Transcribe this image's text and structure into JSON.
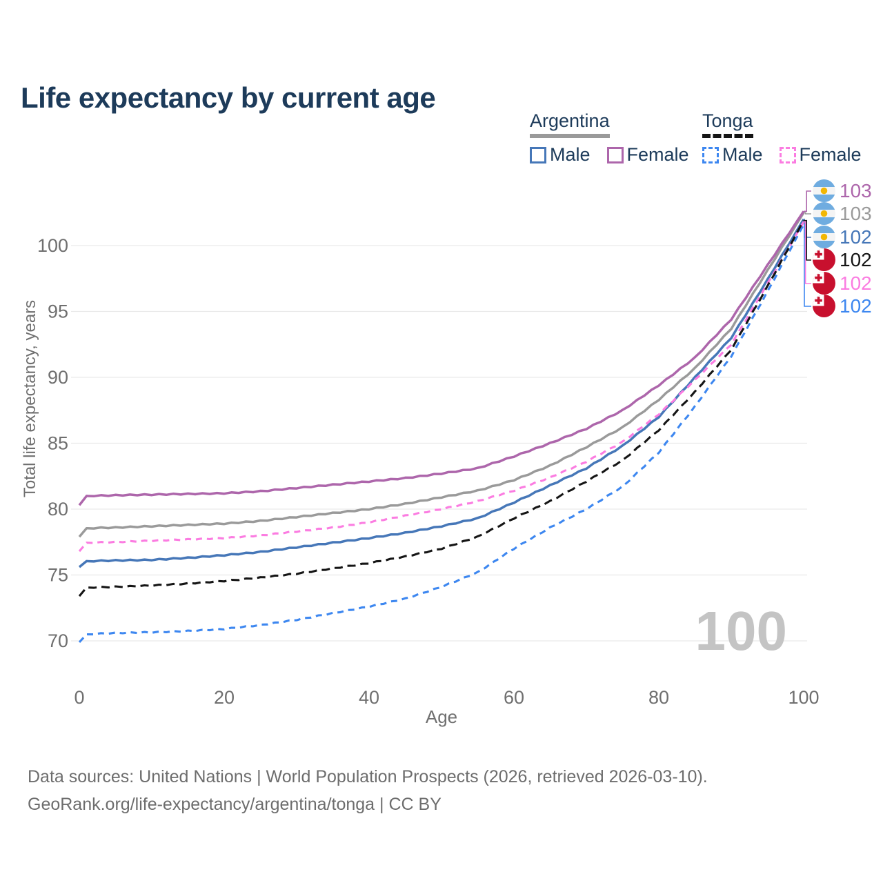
{
  "title": "Life expectancy by current age",
  "legend": {
    "argentina": {
      "label": "Argentina",
      "male": "Male",
      "female": "Female"
    },
    "tonga": {
      "label": "Tonga",
      "male": "Male",
      "female": "Female"
    }
  },
  "y_axis": {
    "title": "Total life expectancy, years"
  },
  "x_axis": {
    "title": "Age"
  },
  "age_counter_watermark": "100",
  "footer": {
    "line1": "Data sources: United Nations | World Population Prospects (2026, retrieved 2026-03-10).",
    "line2": "GeoRank.org/life-expectancy/argentina/tonga | CC BY"
  },
  "colors": {
    "title_text": "#1d3b5a",
    "axis_text": "#6f6f6f",
    "gridline": "#e9e9e9",
    "watermark": "#c4c4c4",
    "argentina_male": "#4677b8",
    "argentina_female": "#ad66ab",
    "argentina_total": "#9a9a9a",
    "tonga_male": "#3d87f0",
    "tonga_female": "#fb7ce1",
    "tonga_total": "#151515",
    "flag_argentina_blue": "#6FACE0",
    "flag_argentina_sun": "#F2B705",
    "flag_tonga_red": "#C8102E"
  },
  "end_labels": [
    {
      "flag": "argentina",
      "value": "103",
      "color": "#ad66ab"
    },
    {
      "flag": "argentina",
      "value": "103",
      "color": "#9a9a9a"
    },
    {
      "flag": "argentina",
      "value": "102",
      "color": "#4677b8"
    },
    {
      "flag": "tonga",
      "value": "102",
      "color": "#151515"
    },
    {
      "flag": "tonga",
      "value": "102",
      "color": "#fb7ce1"
    },
    {
      "flag": "tonga",
      "value": "102",
      "color": "#3d87f0"
    }
  ],
  "chart_data": {
    "type": "line",
    "title": "Life expectancy by current age",
    "xlabel": "Age",
    "ylabel": "Total life expectancy, years",
    "xlim": [
      0,
      100
    ],
    "ylim": [
      70,
      100
    ],
    "grid": true,
    "legend_position": "top-right",
    "x_ticks": [
      0,
      20,
      40,
      60,
      80,
      100
    ],
    "y_ticks": [
      100,
      95,
      90,
      85,
      80,
      75,
      70
    ],
    "x": [
      0,
      1,
      5,
      10,
      15,
      20,
      25,
      30,
      35,
      40,
      45,
      50,
      55,
      60,
      65,
      70,
      75,
      80,
      85,
      90,
      95,
      100
    ],
    "series": [
      {
        "name": "Argentina Male",
        "color": "#4677b8",
        "style": "solid",
        "dash": null,
        "end_label_row": 2,
        "values": [
          75.6,
          76.05,
          76.1,
          76.15,
          76.3,
          76.5,
          76.75,
          77.1,
          77.45,
          77.8,
          78.2,
          78.7,
          79.3,
          80.5,
          81.8,
          83.1,
          84.8,
          87.0,
          90.0,
          93.0,
          97.4,
          102.0
        ]
      },
      {
        "name": "Argentina",
        "color": "#9a9a9a",
        "style": "solid",
        "dash": null,
        "end_label_row": 1,
        "values": [
          77.9,
          78.55,
          78.6,
          78.7,
          78.8,
          78.9,
          79.1,
          79.4,
          79.7,
          80.0,
          80.4,
          80.9,
          81.4,
          82.2,
          83.3,
          84.7,
          86.2,
          88.3,
          90.7,
          93.7,
          98.1,
          102.5
        ]
      },
      {
        "name": "Argentina Female",
        "color": "#ad66ab",
        "style": "solid",
        "dash": null,
        "end_label_row": 0,
        "values": [
          80.3,
          81.0,
          81.05,
          81.1,
          81.15,
          81.2,
          81.35,
          81.6,
          81.85,
          82.1,
          82.35,
          82.7,
          83.1,
          84.0,
          85.0,
          86.1,
          87.5,
          89.4,
          91.5,
          94.4,
          98.5,
          102.6
        ]
      },
      {
        "name": "Tonga Male",
        "color": "#3d87f0",
        "style": "dashed",
        "dash": "9 7",
        "end_label_row": 5,
        "values": [
          69.9,
          70.5,
          70.6,
          70.65,
          70.75,
          70.9,
          71.2,
          71.6,
          72.1,
          72.6,
          73.2,
          74.1,
          75.2,
          77.0,
          78.6,
          80.0,
          81.7,
          84.3,
          87.8,
          91.6,
          96.5,
          101.6
        ]
      },
      {
        "name": "Tonga Female",
        "color": "#fb7ce1",
        "style": "dashed",
        "dash": "9 7",
        "end_label_row": 4,
        "values": [
          76.8,
          77.45,
          77.5,
          77.6,
          77.7,
          77.8,
          78.0,
          78.3,
          78.6,
          79.0,
          79.5,
          80.0,
          80.6,
          81.4,
          82.4,
          83.6,
          85.1,
          87.2,
          89.8,
          92.5,
          97.1,
          101.8
        ]
      },
      {
        "name": "Tonga",
        "color": "#151515",
        "style": "dashed",
        "dash": "12 7",
        "end_label_row": 3,
        "values": [
          73.4,
          74.05,
          74.1,
          74.2,
          74.35,
          74.55,
          74.8,
          75.1,
          75.5,
          75.9,
          76.4,
          77.0,
          77.9,
          79.3,
          80.6,
          82.1,
          83.7,
          86.0,
          88.9,
          92.1,
          96.9,
          101.9
        ]
      }
    ]
  }
}
